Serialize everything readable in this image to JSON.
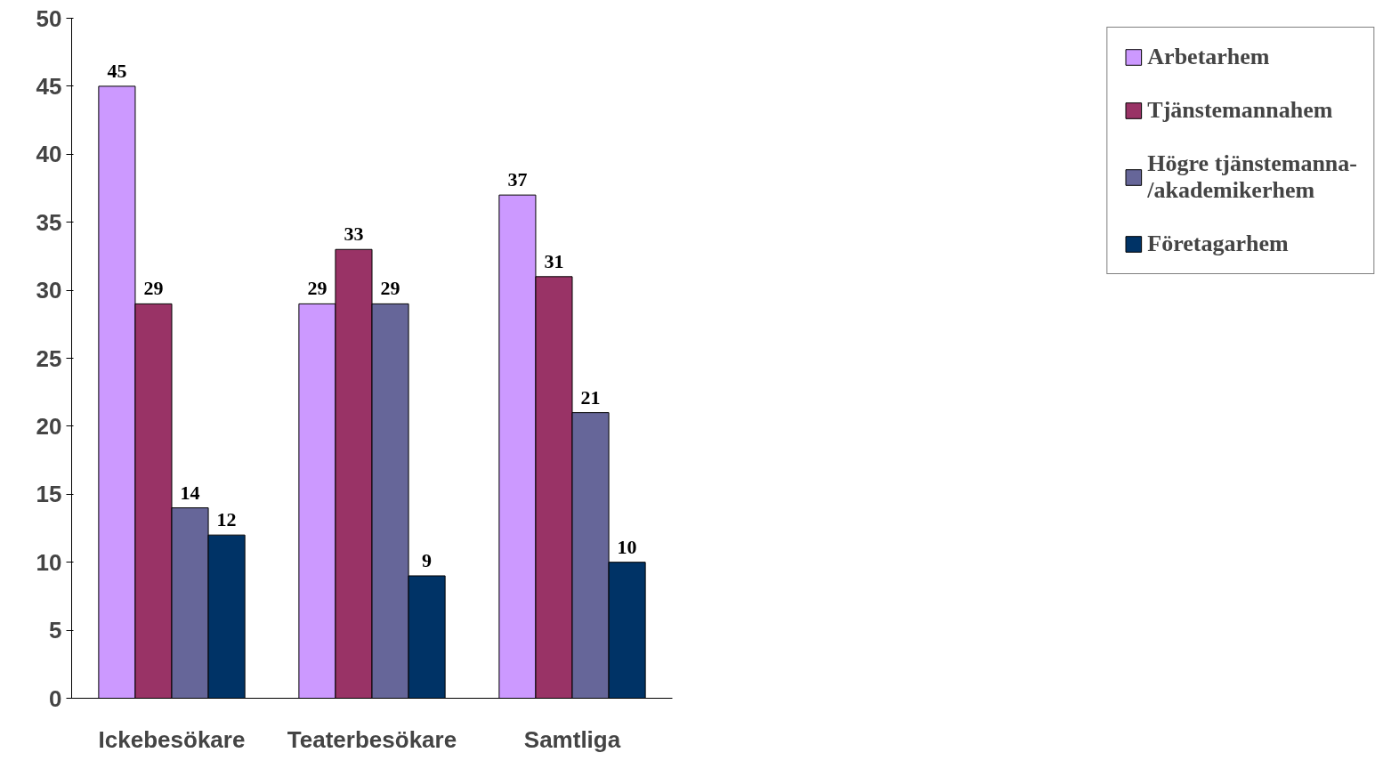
{
  "chart_data": {
    "type": "bar",
    "categories": [
      "Ickebesökare",
      "Teaterbesökare",
      "Samtliga"
    ],
    "series": [
      {
        "name": "Arbetarhem",
        "color": "#cc99ff",
        "values": [
          45,
          29,
          37
        ]
      },
      {
        "name": "Tjänstemannahem",
        "color": "#993366",
        "values": [
          29,
          33,
          31
        ]
      },
      {
        "name": "Högre tjänstemanna-/akademikerhem",
        "color": "#666699",
        "values": [
          14,
          29,
          21
        ]
      },
      {
        "name": "Företagarhem",
        "color": "#003366",
        "values": [
          12,
          9,
          10
        ]
      }
    ],
    "ylim": [
      0,
      50
    ],
    "yticks": [
      0,
      5,
      10,
      15,
      20,
      25,
      30,
      35,
      40,
      45,
      50
    ],
    "grid": false,
    "legend": "right",
    "data_labels": true
  }
}
